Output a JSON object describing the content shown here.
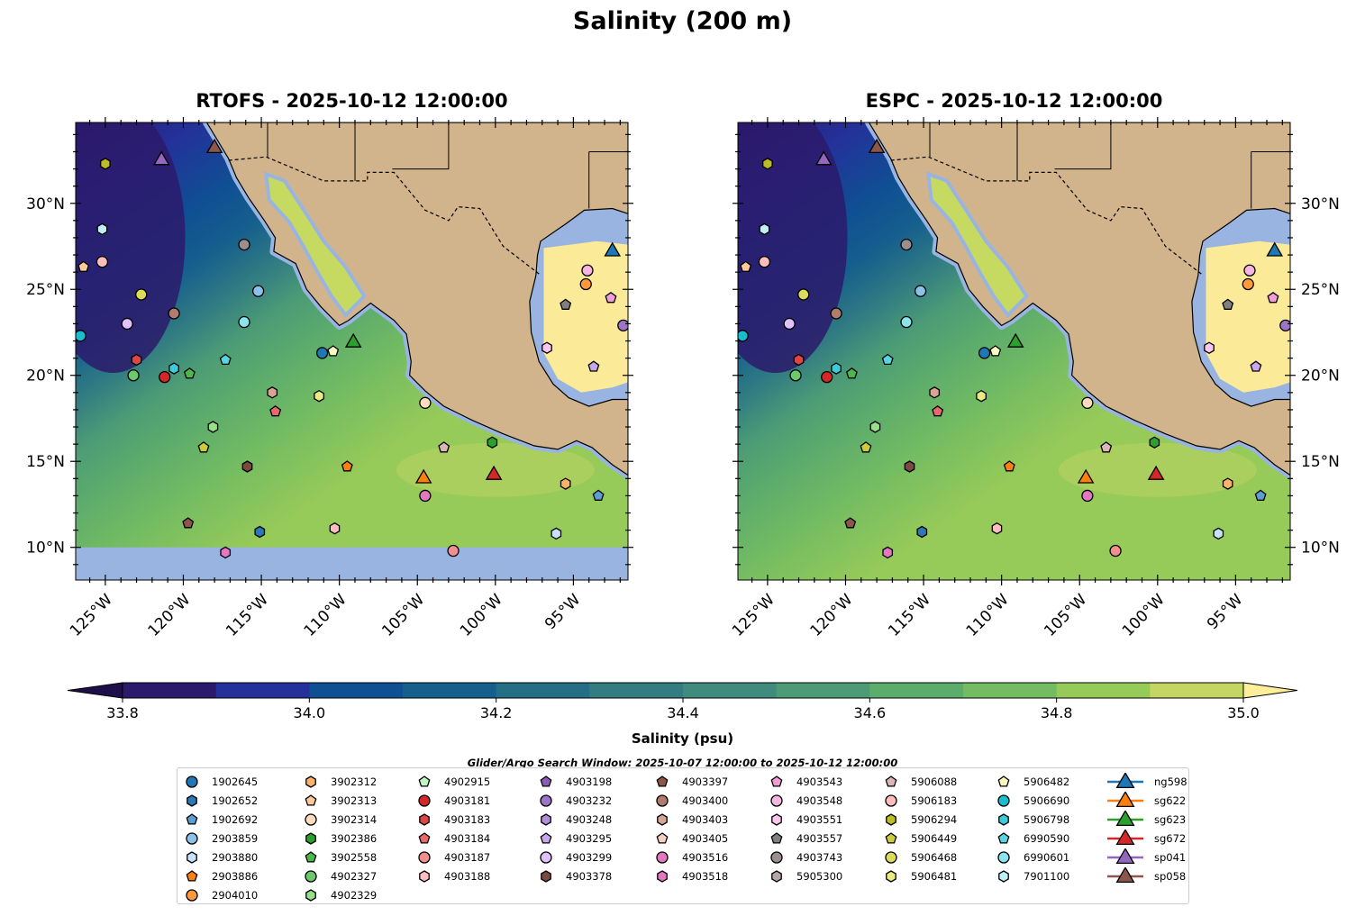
{
  "title": "Salinity (200 m)",
  "panels": [
    {
      "title": "RTOFS - 2025-10-12 12:00:00",
      "model": "RTOFS",
      "nodata_south_of_10N": true
    },
    {
      "title": "ESPC - 2025-10-12 12:00:00",
      "model": "ESPC",
      "nodata_south_of_10N": false
    }
  ],
  "chart_data": {
    "type": "heatmap",
    "title": "Salinity (200 m)",
    "extent": {
      "lon": [
        -126.9,
        -91.5
      ],
      "lat": [
        8.1,
        34.7
      ]
    },
    "x_ticks": [
      {
        "v": -125,
        "label": "125°W"
      },
      {
        "v": -120,
        "label": "120°W"
      },
      {
        "v": -115,
        "label": "115°W"
      },
      {
        "v": -110,
        "label": "110°W"
      },
      {
        "v": -105,
        "label": "105°W"
      },
      {
        "v": -100,
        "label": "100°W"
      },
      {
        "v": -95,
        "label": "95°W"
      }
    ],
    "y_ticks": [
      {
        "v": 10,
        "label": "10°N"
      },
      {
        "v": 15,
        "label": "15°N"
      },
      {
        "v": 20,
        "label": "20°N"
      },
      {
        "v": 25,
        "label": "25°N"
      },
      {
        "v": 30,
        "label": "30°N"
      }
    ],
    "colorbar": {
      "label": "Salinity (psu)",
      "levels": [
        33.8,
        33.9,
        34.0,
        34.1,
        34.2,
        34.3,
        34.4,
        34.5,
        34.6,
        34.7,
        34.8,
        34.9,
        35.0
      ],
      "colors": [
        "#2b1a6b",
        "#24319a",
        "#0f4f93",
        "#155f8d",
        "#246f86",
        "#327c82",
        "#3f8b7e",
        "#4c9b76",
        "#5cac6c",
        "#74bc62",
        "#96ca59",
        "#c4d563",
        "#ece47e"
      ],
      "under_color": "#1e0f4a",
      "over_color": "#fdef9a",
      "tick_labels": [
        "33.8",
        "34.0",
        "34.2",
        "34.4",
        "34.6",
        "34.8",
        "35.0"
      ]
    },
    "search_window": "Glider/Argo Search Window: 2025-10-07 12:00:00 to 2025-10-12 12:00:00",
    "markers": [
      {
        "id": "sp041",
        "lon": -121.4,
        "lat": 32.5
      },
      {
        "id": "sp058",
        "lon": -118.0,
        "lat": 33.2
      },
      {
        "id": "sg623",
        "lon": -109.1,
        "lat": 21.9
      },
      {
        "id": "sg622",
        "lon": -104.6,
        "lat": 14.0
      },
      {
        "id": "sg672",
        "lon": -100.1,
        "lat": 14.2
      },
      {
        "id": "ng598",
        "lon": -92.5,
        "lat": 27.2
      },
      {
        "id": "5906294",
        "lon": -125.0,
        "lat": 32.3
      },
      {
        "id": "7901100",
        "lon": -125.2,
        "lat": 28.5
      },
      {
        "id": "3902313",
        "lon": -126.4,
        "lat": 26.3
      },
      {
        "id": "5906183",
        "lon": -125.2,
        "lat": 26.6
      },
      {
        "id": "5906468",
        "lon": -122.7,
        "lat": 24.7
      },
      {
        "id": "4903299",
        "lon": -123.6,
        "lat": 23.0
      },
      {
        "id": "4903400",
        "lon": -120.6,
        "lat": 23.6
      },
      {
        "id": "5906690",
        "lon": -126.6,
        "lat": 22.3
      },
      {
        "id": "4903183",
        "lon": -123.0,
        "lat": 20.9
      },
      {
        "id": "4902327",
        "lon": -123.2,
        "lat": 20.0
      },
      {
        "id": "4903181",
        "lon": -121.2,
        "lat": 19.9
      },
      {
        "id": "5906798",
        "lon": -120.6,
        "lat": 20.4
      },
      {
        "id": "3902558",
        "lon": -119.6,
        "lat": 20.1
      },
      {
        "id": "4903743",
        "lon": -116.1,
        "lat": 27.6
      },
      {
        "id": "2903859",
        "lon": -115.2,
        "lat": 24.9
      },
      {
        "id": "6990601",
        "lon": -116.1,
        "lat": 23.1
      },
      {
        "id": "6990590",
        "lon": -117.3,
        "lat": 20.9
      },
      {
        "id": "4902329",
        "lon": -118.1,
        "lat": 17.0
      },
      {
        "id": "5906449",
        "lon": -118.7,
        "lat": 15.8
      },
      {
        "id": "4903403",
        "lon": -114.3,
        "lat": 19.0
      },
      {
        "id": "4903184",
        "lon": -114.1,
        "lat": 17.9
      },
      {
        "id": "4903378",
        "lon": -115.9,
        "lat": 14.7
      },
      {
        "id": "4903397",
        "lon": -119.7,
        "lat": 11.4
      },
      {
        "id": "1902652",
        "lon": -115.1,
        "lat": 10.9
      },
      {
        "id": "4903518",
        "lon": -117.3,
        "lat": 9.7
      },
      {
        "id": "1902645",
        "lon": -111.1,
        "lat": 21.3
      },
      {
        "id": "5906482",
        "lon": -110.4,
        "lat": 21.4
      },
      {
        "id": "5906481",
        "lon": -111.3,
        "lat": 18.8
      },
      {
        "id": "2903886",
        "lon": -109.5,
        "lat": 14.7
      },
      {
        "id": "4903188",
        "lon": -110.3,
        "lat": 11.1
      },
      {
        "id": "3902314",
        "lon": -104.5,
        "lat": 18.4
      },
      {
        "id": "5906088",
        "lon": -103.3,
        "lat": 15.8
      },
      {
        "id": "3902386",
        "lon": -100.2,
        "lat": 16.1
      },
      {
        "id": "4903516",
        "lon": -104.5,
        "lat": 13.0
      },
      {
        "id": "4903187",
        "lon": -102.7,
        "lat": 9.8
      },
      {
        "id": "3902312",
        "lon": -95.5,
        "lat": 13.7
      },
      {
        "id": "1902692",
        "lon": -93.4,
        "lat": 13.0
      },
      {
        "id": "2903880",
        "lon": -96.1,
        "lat": 10.8
      },
      {
        "id": "4903548",
        "lon": -94.1,
        "lat": 26.1
      },
      {
        "id": "2904010",
        "lon": -94.2,
        "lat": 25.3
      },
      {
        "id": "4903557",
        "lon": -95.5,
        "lat": 24.1
      },
      {
        "id": "4903543",
        "lon": -92.6,
        "lat": 24.5
      },
      {
        "id": "4903232",
        "lon": -91.8,
        "lat": 22.9
      },
      {
        "id": "4903551",
        "lon": -96.7,
        "lat": 21.6
      },
      {
        "id": "4903295",
        "lon": -93.7,
        "lat": 20.5
      }
    ]
  },
  "legend": {
    "columns": [
      [
        {
          "label": "1902645",
          "shape": "circle",
          "color": "#1f77b4"
        },
        {
          "label": "1902652",
          "shape": "hexagon",
          "color": "#2a78b6"
        },
        {
          "label": "1902692",
          "shape": "pentagon",
          "color": "#5a9fd4"
        },
        {
          "label": "2903859",
          "shape": "circle",
          "color": "#8ec1ea"
        },
        {
          "label": "2903880",
          "shape": "hexagon",
          "color": "#c6e3fb"
        },
        {
          "label": "2903886",
          "shape": "pentagon",
          "color": "#ff7f0e"
        },
        {
          "label": "2904010",
          "shape": "circle",
          "color": "#ff9a3c"
        }
      ],
      [
        {
          "label": "3902312",
          "shape": "hexagon",
          "color": "#ffb26b"
        },
        {
          "label": "3902313",
          "shape": "pentagon",
          "color": "#ffc898"
        },
        {
          "label": "3902314",
          "shape": "circle",
          "color": "#ffdcbe"
        },
        {
          "label": "3902386",
          "shape": "hexagon",
          "color": "#2ca02c"
        },
        {
          "label": "3902558",
          "shape": "pentagon",
          "color": "#4cb84c"
        },
        {
          "label": "4902327",
          "shape": "circle",
          "color": "#6cc96c"
        },
        {
          "label": "4902329",
          "shape": "hexagon",
          "color": "#98df8a"
        }
      ],
      [
        {
          "label": "4902915",
          "shape": "pentagon",
          "color": "#c2f5c2"
        },
        {
          "label": "4903181",
          "shape": "circle",
          "color": "#d62728"
        },
        {
          "label": "4903183",
          "shape": "hexagon",
          "color": "#df4546"
        },
        {
          "label": "4903184",
          "shape": "pentagon",
          "color": "#e8696a"
        },
        {
          "label": "4903187",
          "shape": "circle",
          "color": "#f28f8f"
        },
        {
          "label": "4903188",
          "shape": "hexagon",
          "color": "#ffbfbf"
        }
      ],
      [
        {
          "label": "4903198",
          "shape": "pentagon",
          "color": "#8c5cb5"
        },
        {
          "label": "4903232",
          "shape": "circle",
          "color": "#9c74c8"
        },
        {
          "label": "4903248",
          "shape": "hexagon",
          "color": "#b08ed8"
        },
        {
          "label": "4903295",
          "shape": "pentagon",
          "color": "#c7a8ec"
        },
        {
          "label": "4903299",
          "shape": "circle",
          "color": "#dfc2fa"
        },
        {
          "label": "4903378",
          "shape": "hexagon",
          "color": "#7a4a3e"
        }
      ],
      [
        {
          "label": "4903397",
          "shape": "pentagon",
          "color": "#8c564b"
        },
        {
          "label": "4903400",
          "shape": "circle",
          "color": "#b07c6e"
        },
        {
          "label": "4903403",
          "shape": "hexagon",
          "color": "#d6a595"
        },
        {
          "label": "4903405",
          "shape": "pentagon",
          "color": "#f9cfc2"
        },
        {
          "label": "4903516",
          "shape": "circle",
          "color": "#e377c2"
        },
        {
          "label": "4903518",
          "shape": "hexagon",
          "color": "#e377c2"
        }
      ],
      [
        {
          "label": "4903543",
          "shape": "pentagon",
          "color": "#f29cd8"
        },
        {
          "label": "4903548",
          "shape": "circle",
          "color": "#f7b6e2"
        },
        {
          "label": "4903551",
          "shape": "hexagon",
          "color": "#fcc7ee"
        },
        {
          "label": "4903557",
          "shape": "pentagon",
          "color": "#7f7f7f"
        },
        {
          "label": "4903743",
          "shape": "circle",
          "color": "#9a8f8f"
        },
        {
          "label": "5905300",
          "shape": "hexagon",
          "color": "#b8a5a5"
        }
      ],
      [
        {
          "label": "5906088",
          "shape": "pentagon",
          "color": "#dcb5b8"
        },
        {
          "label": "5906183",
          "shape": "circle",
          "color": "#ffbdbd"
        },
        {
          "label": "5906294",
          "shape": "hexagon",
          "color": "#bcbd22"
        },
        {
          "label": "5906449",
          "shape": "pentagon",
          "color": "#cccc3c"
        },
        {
          "label": "5906468",
          "shape": "circle",
          "color": "#dbdb5c"
        },
        {
          "label": "5906481",
          "shape": "hexagon",
          "color": "#eaea80"
        }
      ],
      [
        {
          "label": "5906482",
          "shape": "pentagon",
          "color": "#fafac0"
        },
        {
          "label": "5906690",
          "shape": "circle",
          "color": "#17becf"
        },
        {
          "label": "5906798",
          "shape": "hexagon",
          "color": "#3ccbd8"
        },
        {
          "label": "6990590",
          "shape": "pentagon",
          "color": "#5ad4e0"
        },
        {
          "label": "6990601",
          "shape": "circle",
          "color": "#8ce4ec"
        },
        {
          "label": "7901100",
          "shape": "hexagon",
          "color": "#bff0f7"
        }
      ],
      [
        {
          "label": "ng598",
          "shape": "triangle",
          "color": "#1f77b4"
        },
        {
          "label": "sg622",
          "shape": "triangle",
          "color": "#ff7f0e"
        },
        {
          "label": "sg623",
          "shape": "triangle",
          "color": "#2ca02c"
        },
        {
          "label": "sg672",
          "shape": "triangle",
          "color": "#d62728"
        },
        {
          "label": "sp041",
          "shape": "triangle",
          "color": "#9467bd"
        },
        {
          "label": "sp058",
          "shape": "triangle",
          "color": "#8c564b"
        }
      ]
    ]
  },
  "colors": {
    "land": "#d2b48c",
    "shelf": "#99b4e0",
    "gulf_interior": "#fbeb98",
    "gulf_california": "#c6da62"
  }
}
